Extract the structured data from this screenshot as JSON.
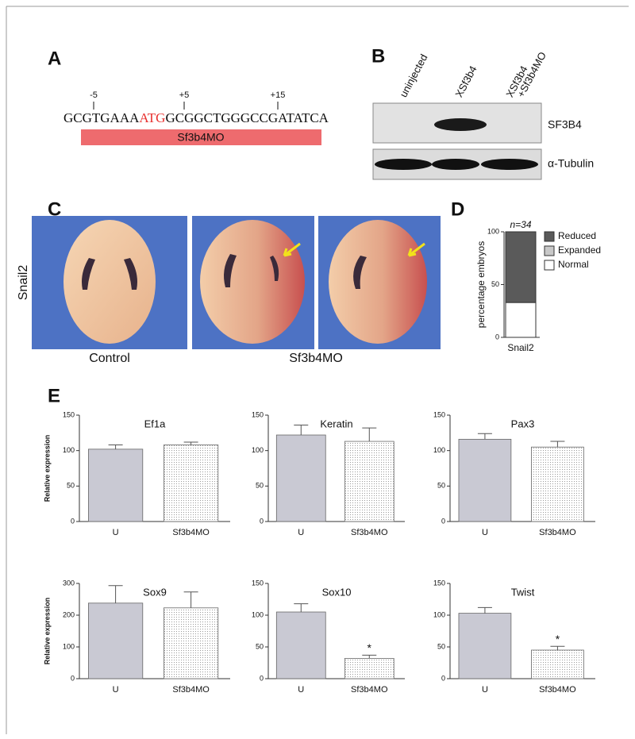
{
  "panel_labels": [
    "A",
    "B",
    "C",
    "D",
    "E"
  ],
  "sequence": {
    "position_labels": [
      "-5",
      "+5",
      "+15"
    ],
    "before": "GCGTGAAA",
    "start_codon": "ATG",
    "after": "GCGGCTGGGCCGATATCA",
    "morpholino": "Sf3b4MO"
  },
  "blot": {
    "lanes": [
      [
        "uninjected"
      ],
      [
        "XSf3b4"
      ],
      [
        "XSf3b4",
        "+Sf3b4MO"
      ]
    ],
    "rows": [
      "SF3B4",
      "α-Tubulin"
    ]
  },
  "in_situ": {
    "marker": "Snail2",
    "groups": [
      "Control",
      "Sf3b4MO"
    ]
  },
  "chart_data": [
    {
      "type": "stacked_bar",
      "ylabel": "percentage embryos",
      "annotation": "n=34",
      "categories": [
        "Snail2"
      ],
      "series": [
        {
          "name": "Reduced",
          "color": "#5a5a5a",
          "values": [
            67
          ]
        },
        {
          "name": "Expanded",
          "color": "#c8c8c8",
          "values": [
            0
          ]
        },
        {
          "name": "Normal",
          "color": "#ffffff",
          "values": [
            33
          ]
        }
      ],
      "ylim": [
        0,
        100
      ],
      "yticks": [
        0,
        50,
        100
      ]
    },
    {
      "type": "bar",
      "title": "Ef1a",
      "ylabel": "Relative expression",
      "categories": [
        "U",
        "Sf3b4MO"
      ],
      "values": [
        102,
        108
      ],
      "errors": [
        6,
        4
      ],
      "fill_style": [
        "solid",
        "stipple"
      ],
      "color": "#c9c9d3",
      "value_annotations": [
        null,
        null
      ],
      "ylim": [
        0,
        150
      ],
      "yticks": [
        0,
        50,
        100,
        150
      ]
    },
    {
      "type": "bar",
      "title": "Keratin",
      "categories": [
        "U",
        "Sf3b4MO"
      ],
      "values": [
        122,
        113
      ],
      "errors": [
        14,
        19
      ],
      "fill_style": [
        "solid",
        "stipple"
      ],
      "color": "#c9c9d3",
      "value_annotations": [
        null,
        null
      ],
      "ylim": [
        0,
        150
      ],
      "yticks": [
        0,
        50,
        100,
        150
      ]
    },
    {
      "type": "bar",
      "title": "Pax3",
      "categories": [
        "U",
        "Sf3b4MO"
      ],
      "values": [
        116,
        105
      ],
      "errors": [
        8,
        8
      ],
      "fill_style": [
        "solid",
        "stipple"
      ],
      "color": "#c9c9d3",
      "value_annotations": [
        null,
        null
      ],
      "ylim": [
        0,
        150
      ],
      "yticks": [
        0,
        50,
        100,
        150
      ]
    },
    {
      "type": "bar",
      "title": "Sox9",
      "ylabel": "Relative expression",
      "categories": [
        "U",
        "Sf3b4MO"
      ],
      "values": [
        238,
        223
      ],
      "errors": [
        55,
        50
      ],
      "fill_style": [
        "solid",
        "stipple"
      ],
      "color": "#c9c9d3",
      "value_annotations": [
        null,
        null
      ],
      "ylim": [
        0,
        300
      ],
      "yticks": [
        0,
        100,
        200,
        300
      ]
    },
    {
      "type": "bar",
      "title": "Sox10",
      "categories": [
        "U",
        "Sf3b4MO"
      ],
      "values": [
        105,
        32
      ],
      "errors": [
        13,
        5
      ],
      "fill_style": [
        "solid",
        "stipple"
      ],
      "color": "#c9c9d3",
      "value_annotations": [
        null,
        "*"
      ],
      "ylim": [
        0,
        150
      ],
      "yticks": [
        0,
        50,
        100,
        150
      ]
    },
    {
      "type": "bar",
      "title": "Twist",
      "categories": [
        "U",
        "Sf3b4MO"
      ],
      "values": [
        103,
        45
      ],
      "errors": [
        9,
        6
      ],
      "fill_style": [
        "solid",
        "stipple"
      ],
      "color": "#c9c9d3",
      "value_annotations": [
        null,
        "*"
      ],
      "ylim": [
        0,
        150
      ],
      "yticks": [
        0,
        50,
        100,
        150
      ]
    }
  ]
}
